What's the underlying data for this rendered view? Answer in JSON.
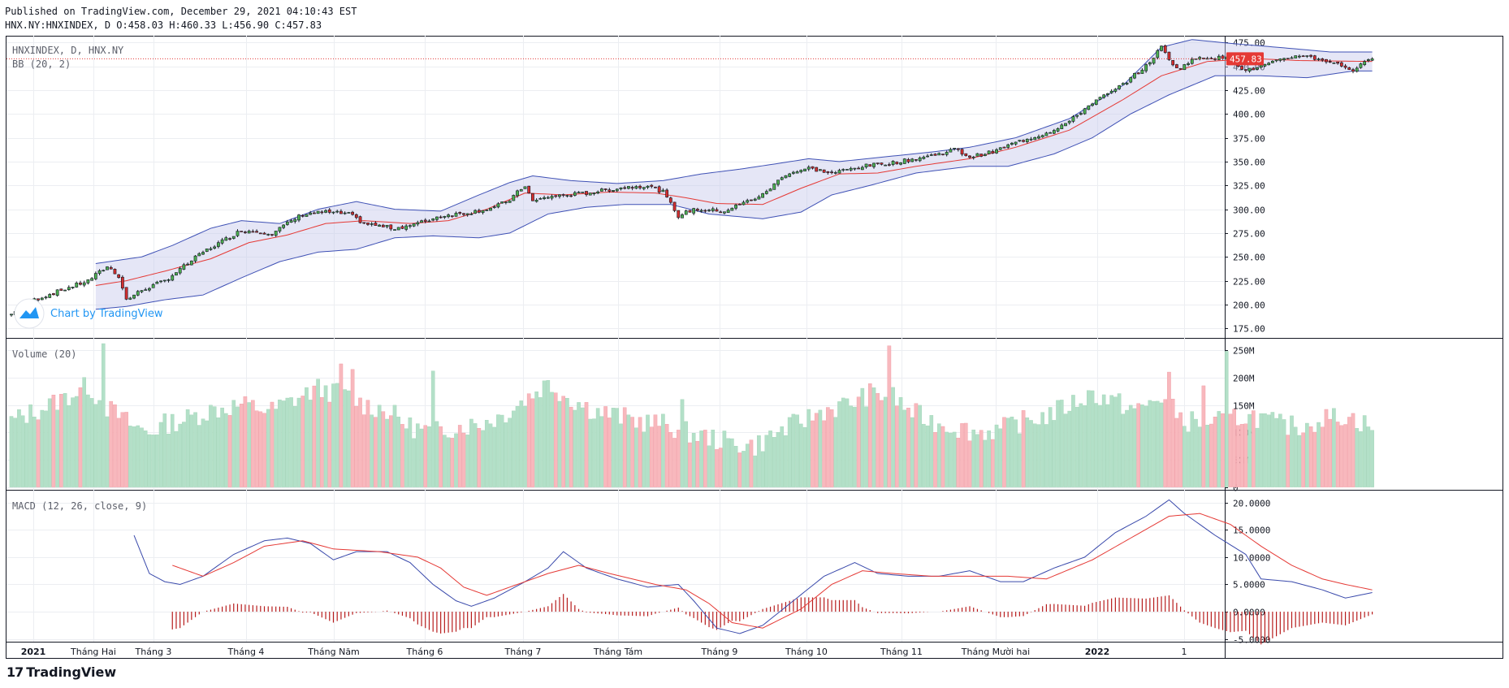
{
  "header": {
    "published": "Published on TradingView.com, December 29, 2021 04:10:43 EST",
    "ohlc": "HNX.NY:HNXINDEX, D O:458.03 H:460.33 L:456.90 C:457.83"
  },
  "footer": {
    "brand": "TradingView",
    "logo_glyph": "17"
  },
  "colors": {
    "up": "#26a69a",
    "up_fill": "#4caf50",
    "down": "#ef5350",
    "down_fill": "#d32f2f",
    "bb_band": "#3f51b5",
    "bb_fill": "#c5c7ea",
    "bb_basis": "#e53935",
    "vol_up": "#b3e0c8",
    "vol_down": "#f8b8bd",
    "macd": "#3949ab",
    "signal": "#e53935",
    "hist": "#b71c1c",
    "price_tag": "#e53935"
  },
  "chart_data": [
    {
      "type": "candlestick",
      "title": "HNXINDEX, D, HNX.NY",
      "overlay_label": "BB (20, 2)",
      "watermark": "Chart by TradingView",
      "last_price_label": "457.83",
      "last_price": 457.83,
      "ylim": [
        165,
        482
      ],
      "y_ticks": [
        "475.00",
        "450.00",
        "425.00",
        "400.00",
        "375.00",
        "350.00",
        "325.00",
        "300.00",
        "275.00",
        "250.00",
        "225.00",
        "200.00",
        "175.00"
      ],
      "close_anchors": [
        [
          0,
          190
        ],
        [
          6,
          205
        ],
        [
          20,
          225
        ],
        [
          25,
          240
        ],
        [
          28,
          230
        ],
        [
          30,
          205
        ],
        [
          34,
          215
        ],
        [
          40,
          225
        ],
        [
          50,
          255
        ],
        [
          60,
          278
        ],
        [
          68,
          275
        ],
        [
          72,
          285
        ],
        [
          76,
          295
        ],
        [
          82,
          297
        ],
        [
          88,
          295
        ],
        [
          92,
          285
        ],
        [
          100,
          280
        ],
        [
          106,
          285
        ],
        [
          112,
          293
        ],
        [
          120,
          297
        ],
        [
          126,
          302
        ],
        [
          130,
          310
        ],
        [
          134,
          325
        ],
        [
          136,
          308
        ],
        [
          140,
          313
        ],
        [
          150,
          317
        ],
        [
          160,
          323
        ],
        [
          166,
          325
        ],
        [
          170,
          318
        ],
        [
          174,
          293
        ],
        [
          178,
          300
        ],
        [
          186,
          298
        ],
        [
          190,
          305
        ],
        [
          196,
          315
        ],
        [
          202,
          337
        ],
        [
          208,
          343
        ],
        [
          214,
          338
        ],
        [
          222,
          345
        ],
        [
          232,
          350
        ],
        [
          242,
          358
        ],
        [
          246,
          363
        ],
        [
          250,
          355
        ],
        [
          256,
          360
        ],
        [
          262,
          370
        ],
        [
          270,
          380
        ],
        [
          276,
          392
        ],
        [
          282,
          412
        ],
        [
          288,
          425
        ],
        [
          296,
          450
        ],
        [
          300,
          470
        ],
        [
          304,
          447
        ],
        [
          310,
          460
        ],
        [
          318,
          458
        ],
        [
          322,
          445
        ],
        [
          326,
          450
        ],
        [
          336,
          462
        ],
        [
          344,
          455
        ],
        [
          350,
          446
        ],
        [
          355,
          458
        ]
      ],
      "bb_upper_anchors": [
        [
          22,
          243
        ],
        [
          34,
          250
        ],
        [
          42,
          262
        ],
        [
          52,
          280
        ],
        [
          60,
          288
        ],
        [
          70,
          285
        ],
        [
          80,
          300
        ],
        [
          90,
          308
        ],
        [
          100,
          300
        ],
        [
          112,
          298
        ],
        [
          122,
          315
        ],
        [
          130,
          328
        ],
        [
          136,
          335
        ],
        [
          146,
          330
        ],
        [
          158,
          327
        ],
        [
          170,
          330
        ],
        [
          180,
          337
        ],
        [
          190,
          342
        ],
        [
          200,
          348
        ],
        [
          208,
          353
        ],
        [
          216,
          350
        ],
        [
          228,
          355
        ],
        [
          240,
          360
        ],
        [
          250,
          365
        ],
        [
          262,
          375
        ],
        [
          276,
          395
        ],
        [
          290,
          430
        ],
        [
          300,
          470
        ],
        [
          308,
          478
        ],
        [
          318,
          474
        ],
        [
          330,
          470
        ],
        [
          344,
          465
        ],
        [
          355,
          465
        ]
      ],
      "bb_lower_anchors": [
        [
          22,
          195
        ],
        [
          30,
          198
        ],
        [
          40,
          205
        ],
        [
          50,
          210
        ],
        [
          60,
          228
        ],
        [
          70,
          245
        ],
        [
          80,
          255
        ],
        [
          90,
          258
        ],
        [
          100,
          270
        ],
        [
          110,
          272
        ],
        [
          122,
          270
        ],
        [
          130,
          275
        ],
        [
          140,
          295
        ],
        [
          150,
          302
        ],
        [
          160,
          305
        ],
        [
          172,
          305
        ],
        [
          182,
          295
        ],
        [
          196,
          290
        ],
        [
          206,
          297
        ],
        [
          214,
          315
        ],
        [
          224,
          325
        ],
        [
          236,
          338
        ],
        [
          250,
          345
        ],
        [
          260,
          345
        ],
        [
          272,
          358
        ],
        [
          282,
          375
        ],
        [
          292,
          400
        ],
        [
          302,
          420
        ],
        [
          314,
          440
        ],
        [
          326,
          440
        ],
        [
          338,
          438
        ],
        [
          350,
          445
        ],
        [
          355,
          445
        ]
      ],
      "bb_basis_anchors": [
        [
          22,
          220
        ],
        [
          30,
          225
        ],
        [
          40,
          235
        ],
        [
          52,
          248
        ],
        [
          62,
          265
        ],
        [
          72,
          273
        ],
        [
          82,
          285
        ],
        [
          92,
          288
        ],
        [
          104,
          285
        ],
        [
          114,
          288
        ],
        [
          124,
          300
        ],
        [
          134,
          317
        ],
        [
          144,
          315
        ],
        [
          156,
          318
        ],
        [
          168,
          317
        ],
        [
          176,
          312
        ],
        [
          184,
          306
        ],
        [
          196,
          305
        ],
        [
          206,
          322
        ],
        [
          216,
          337
        ],
        [
          226,
          338
        ],
        [
          236,
          345
        ],
        [
          250,
          353
        ],
        [
          262,
          365
        ],
        [
          276,
          383
        ],
        [
          290,
          415
        ],
        [
          300,
          440
        ],
        [
          312,
          455
        ],
        [
          324,
          458
        ],
        [
          336,
          456
        ],
        [
          355,
          455
        ]
      ]
    },
    {
      "type": "bar",
      "title": "Volume (20)",
      "ylim": [
        -5,
        265
      ],
      "y_ticks": [
        "250M",
        "200M",
        "150M",
        "100M",
        "50M",
        "0"
      ],
      "volume_anchors": [
        [
          0,
          120
        ],
        [
          10,
          150
        ],
        [
          16,
          170
        ],
        [
          20,
          185
        ],
        [
          24,
          150
        ],
        [
          28,
          130
        ],
        [
          32,
          110
        ],
        [
          36,
          100
        ],
        [
          40,
          115
        ],
        [
          46,
          125
        ],
        [
          52,
          140
        ],
        [
          60,
          150
        ],
        [
          68,
          140
        ],
        [
          74,
          160
        ],
        [
          80,
          180
        ],
        [
          86,
          170
        ],
        [
          92,
          150
        ],
        [
          98,
          140
        ],
        [
          104,
          110
        ],
        [
          110,
          100
        ],
        [
          116,
          110
        ],
        [
          122,
          115
        ],
        [
          128,
          130
        ],
        [
          134,
          160
        ],
        [
          140,
          190
        ],
        [
          146,
          160
        ],
        [
          152,
          140
        ],
        [
          158,
          130
        ],
        [
          164,
          120
        ],
        [
          170,
          115
        ],
        [
          176,
          100
        ],
        [
          182,
          90
        ],
        [
          188,
          80
        ],
        [
          194,
          75
        ],
        [
          200,
          100
        ],
        [
          206,
          120
        ],
        [
          212,
          140
        ],
        [
          218,
          150
        ],
        [
          224,
          170
        ],
        [
          230,
          165
        ],
        [
          234,
          140
        ],
        [
          240,
          120
        ],
        [
          246,
          110
        ],
        [
          252,
          100
        ],
        [
          258,
          105
        ],
        [
          264,
          120
        ],
        [
          270,
          130
        ],
        [
          276,
          150
        ],
        [
          282,
          170
        ],
        [
          288,
          155
        ],
        [
          294,
          140
        ],
        [
          300,
          165
        ],
        [
          306,
          120
        ],
        [
          312,
          120
        ],
        [
          318,
          125
        ],
        [
          324,
          130
        ],
        [
          330,
          115
        ],
        [
          336,
          110
        ],
        [
          342,
          125
        ],
        [
          348,
          130
        ],
        [
          355,
          110
        ]
      ],
      "spikes": [
        [
          24,
          262
        ],
        [
          86,
          225
        ],
        [
          89,
          215
        ],
        [
          110,
          212
        ],
        [
          175,
          160
        ],
        [
          229,
          258
        ],
        [
          302,
          210
        ],
        [
          311,
          185
        ],
        [
          317,
          248
        ]
      ]
    },
    {
      "type": "line",
      "title": "MACD (12, 26, close, 9)",
      "ylim": [
        -5.5,
        21
      ],
      "y_ticks": [
        "20.0000",
        "15.0000",
        "10.0000",
        "5.0000",
        "0.0000",
        "-5.0000"
      ],
      "macd_anchors": [
        [
          32,
          14
        ],
        [
          36,
          7
        ],
        [
          40,
          5.5
        ],
        [
          44,
          5
        ],
        [
          50,
          6.5
        ],
        [
          58,
          10.5
        ],
        [
          66,
          13
        ],
        [
          72,
          13.5
        ],
        [
          78,
          12.5
        ],
        [
          84,
          9.5
        ],
        [
          90,
          11
        ],
        [
          98,
          11
        ],
        [
          104,
          9
        ],
        [
          110,
          5
        ],
        [
          116,
          2
        ],
        [
          120,
          1
        ],
        [
          126,
          2.5
        ],
        [
          134,
          5.5
        ],
        [
          140,
          8
        ],
        [
          144,
          11
        ],
        [
          150,
          8
        ],
        [
          158,
          6
        ],
        [
          166,
          4.5
        ],
        [
          174,
          5
        ],
        [
          178,
          2
        ],
        [
          184,
          -3
        ],
        [
          190,
          -4
        ],
        [
          196,
          -2.5
        ],
        [
          204,
          2
        ],
        [
          212,
          6.5
        ],
        [
          220,
          9
        ],
        [
          226,
          7
        ],
        [
          234,
          6.5
        ],
        [
          242,
          6.5
        ],
        [
          250,
          7.5
        ],
        [
          258,
          5.5
        ],
        [
          264,
          5.5
        ],
        [
          272,
          8
        ],
        [
          280,
          10
        ],
        [
          288,
          14.5
        ],
        [
          296,
          17.5
        ],
        [
          302,
          20.5
        ],
        [
          306,
          18
        ],
        [
          314,
          14
        ],
        [
          322,
          10.5
        ],
        [
          326,
          6
        ],
        [
          334,
          5.5
        ],
        [
          342,
          4
        ],
        [
          348,
          2.5
        ],
        [
          355,
          3.5
        ]
      ],
      "signal_anchors": [
        [
          42,
          8.5
        ],
        [
          50,
          6.5
        ],
        [
          58,
          9
        ],
        [
          66,
          12
        ],
        [
          76,
          13
        ],
        [
          84,
          11.5
        ],
        [
          96,
          11
        ],
        [
          106,
          10
        ],
        [
          112,
          8
        ],
        [
          118,
          4.5
        ],
        [
          124,
          3
        ],
        [
          132,
          5
        ],
        [
          140,
          7
        ],
        [
          148,
          8.5
        ],
        [
          156,
          7
        ],
        [
          168,
          5
        ],
        [
          176,
          4
        ],
        [
          182,
          1.5
        ],
        [
          188,
          -2
        ],
        [
          196,
          -3
        ],
        [
          206,
          0.5
        ],
        [
          214,
          5
        ],
        [
          222,
          7.5
        ],
        [
          230,
          7
        ],
        [
          240,
          6.5
        ],
        [
          250,
          6.5
        ],
        [
          260,
          6.5
        ],
        [
          270,
          6
        ],
        [
          282,
          9.5
        ],
        [
          292,
          13.5
        ],
        [
          302,
          17.5
        ],
        [
          310,
          18
        ],
        [
          318,
          16
        ],
        [
          326,
          12
        ],
        [
          334,
          8.5
        ],
        [
          342,
          6
        ],
        [
          348,
          5
        ],
        [
          355,
          4
        ]
      ]
    }
  ],
  "x_axis_labels": [
    "2021",
    "Tháng Hai",
    "Tháng 3",
    "Tháng 4",
    "Tháng Năm",
    "Tháng 6",
    "Tháng 7",
    "Tháng Tám",
    "Tháng 9",
    "Tháng 10",
    "Tháng 11",
    "Tháng Mười hai",
    "2022",
    "1"
  ]
}
